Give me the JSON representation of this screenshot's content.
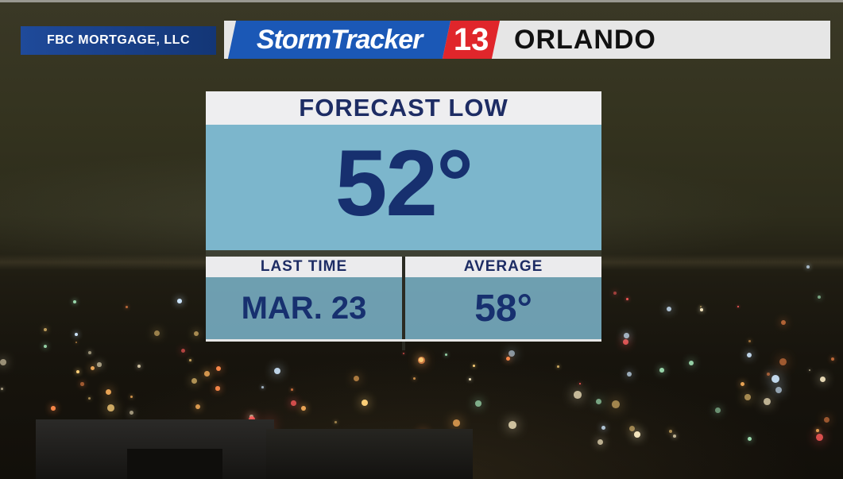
{
  "sponsor": {
    "text": "FBC MORTGAGE, LLC"
  },
  "header": {
    "brand_name": "StormTracker",
    "brand_number": "13",
    "city": "ORLANDO"
  },
  "forecast": {
    "title": "FORECAST LOW",
    "value": "52°",
    "last_time_label": "LAST TIME",
    "last_time_value": "MAR. 23",
    "average_label": "AVERAGE",
    "average_value": "58°"
  },
  "colors": {
    "brand_blue": "#1b58b6",
    "brand_red": "#e0262b",
    "text_navy": "#17306f",
    "panel_blue": "#7cb6cc",
    "header_gray": "#eeeef0"
  }
}
